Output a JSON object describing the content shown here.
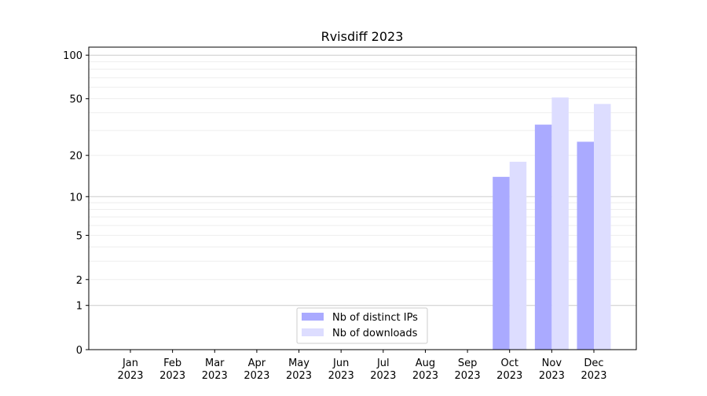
{
  "chart_data": {
    "type": "bar",
    "title": "Rvisdiff 2023",
    "xlabel": "",
    "ylabel": "",
    "yscale": "log(1+y)",
    "ylim": [
      0,
      110
    ],
    "yticks": [
      0,
      1,
      2,
      5,
      10,
      20,
      50,
      100
    ],
    "grid": true,
    "legend_position": "bottom-center",
    "categories": [
      "Jan\n2023",
      "Feb\n2023",
      "Mar\n2023",
      "Apr\n2023",
      "May\n2023",
      "Jun\n2023",
      "Jul\n2023",
      "Aug\n2023",
      "Sep\n2023",
      "Oct\n2023",
      "Nov\n2023",
      "Dec\n2023"
    ],
    "series": [
      {
        "name": "Nb of distinct IPs",
        "color": "#aaaaff",
        "values": [
          0,
          0,
          0,
          0,
          0,
          0,
          0,
          0,
          0,
          14,
          33,
          25
        ]
      },
      {
        "name": "Nb of downloads",
        "color": "#ddddff",
        "values": [
          0,
          0,
          0,
          0,
          0,
          0,
          0,
          0,
          0,
          18,
          51,
          46
        ]
      }
    ]
  }
}
